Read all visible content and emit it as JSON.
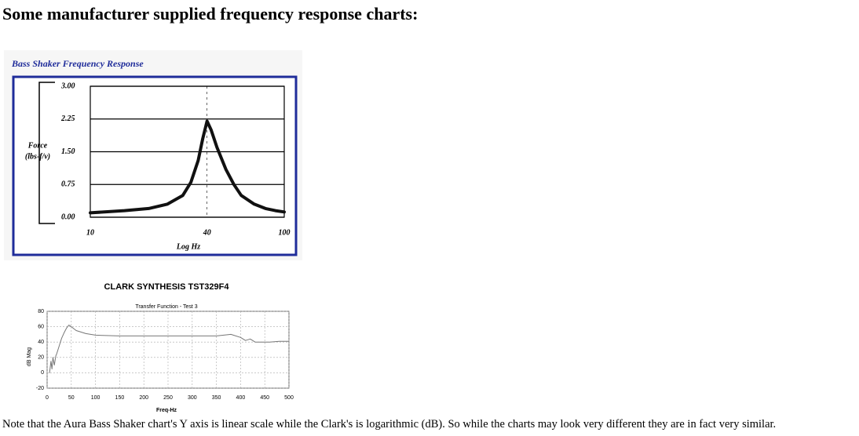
{
  "heading": "Some manufacturer supplied frequency response charts:",
  "chart_data": [
    {
      "type": "line",
      "title": "Bass Shaker Frequency Response",
      "ylabel": [
        "Force",
        "(lbs-f/v)"
      ],
      "xlabel": "Log Hz",
      "xscale": "log",
      "xlim": [
        10,
        100
      ],
      "xticks": [
        10,
        40,
        100
      ],
      "ylim": [
        0,
        3
      ],
      "yticks": [
        {
          "value": 3,
          "label": "3.00"
        },
        {
          "value": 2.25,
          "label": "2.25"
        },
        {
          "value": 1.5,
          "label": "1.50"
        },
        {
          "value": 0.75,
          "label": "0.75"
        },
        {
          "value": 0,
          "label": "0.00"
        }
      ],
      "grid": true,
      "color": "#111111",
      "x": [
        10,
        15,
        20,
        25,
        30,
        33,
        36,
        38,
        40,
        42,
        45,
        50,
        55,
        60,
        70,
        80,
        90,
        100
      ],
      "values": [
        0.1,
        0.15,
        0.2,
        0.3,
        0.5,
        0.8,
        1.3,
        1.8,
        2.2,
        2.0,
        1.6,
        1.1,
        0.75,
        0.5,
        0.3,
        0.2,
        0.15,
        0.12
      ]
    },
    {
      "type": "line",
      "title": "CLARK SYNTHESIS  TST329F4",
      "subtitle": "Transfer Function - Test 3",
      "ylabel": [
        "dB Mag"
      ],
      "xlabel": "Freq-Hz",
      "xlim": [
        0,
        500
      ],
      "xticks": [
        0,
        50,
        100,
        150,
        200,
        250,
        300,
        350,
        400,
        450,
        500
      ],
      "ylim": [
        -20,
        80
      ],
      "yticks": [
        80,
        60,
        40,
        20,
        0,
        -20
      ],
      "grid": true,
      "color": "#777777",
      "x": [
        5,
        8,
        10,
        12,
        15,
        18,
        20,
        25,
        30,
        35,
        40,
        45,
        50,
        60,
        80,
        100,
        150,
        200,
        250,
        300,
        350,
        380,
        400,
        410,
        420,
        430,
        440,
        460,
        480,
        500
      ],
      "values": [
        0,
        15,
        5,
        20,
        10,
        22,
        25,
        35,
        45,
        52,
        58,
        62,
        60,
        55,
        51,
        49,
        48,
        48,
        48,
        48,
        48,
        50,
        46,
        42,
        44,
        40,
        40,
        40,
        41,
        41
      ]
    }
  ],
  "note": "Note that the Aura Bass Shaker chart's Y axis is linear scale while the Clark's is logarithmic (dB). So while the charts may look very different they are in fact very similar."
}
